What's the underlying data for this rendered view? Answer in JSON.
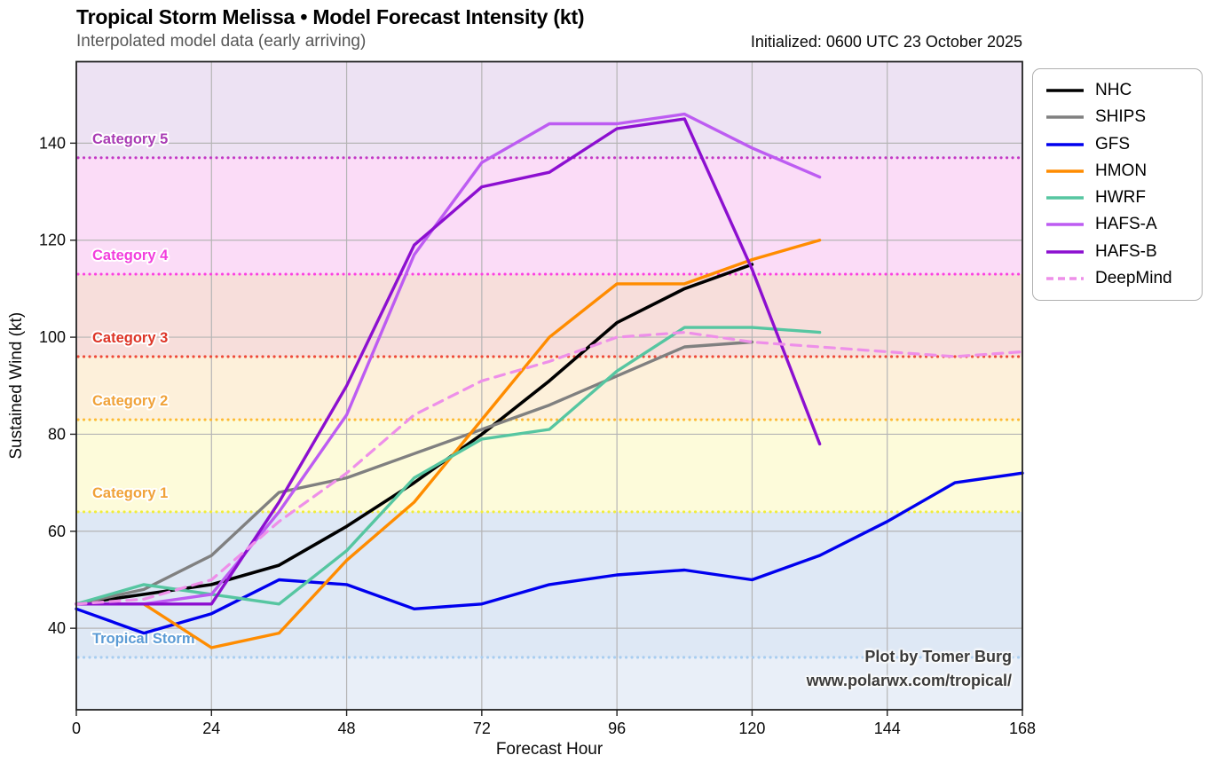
{
  "header": {
    "title": "Tropical Storm Melissa • Model Forecast Intensity (kt)",
    "subtitle": "Interpolated model data (early arriving)",
    "initialized": "Initialized: 0600 UTC 23 October 2025"
  },
  "watermark": {
    "line1": "Plot by Tomer Burg",
    "line2": "www.polarwx.com/tropical/"
  },
  "chart_data": {
    "type": "line",
    "title": "Tropical Storm Melissa • Model Forecast Intensity (kt)",
    "subtitle": "Interpolated model data (early arriving)",
    "xlabel": "Forecast Hour",
    "ylabel": "Sustained Wind (kt)",
    "xlim": [
      0,
      168
    ],
    "ylim": [
      23.2,
      156.8
    ],
    "xticks": [
      0,
      24,
      48,
      72,
      96,
      120,
      144,
      168
    ],
    "yticks": [
      40,
      60,
      80,
      100,
      120,
      140
    ],
    "grid": true,
    "legend_position": "outside-top-right",
    "bands": [
      {
        "label": "",
        "min": 23.2,
        "max": 34,
        "fill": "#e9eff8",
        "line_color": "",
        "label_color": ""
      },
      {
        "label": "Tropical Storm",
        "min": 34,
        "max": 64,
        "fill": "#dee8f5",
        "line_color": "#a8cdf0",
        "label_color": "#5b9bd5"
      },
      {
        "label": "Category 1",
        "min": 64,
        "max": 83,
        "fill": "#fdfbda",
        "line_color": "#f0ec3e",
        "label_color": "#f0a239"
      },
      {
        "label": "Category 2",
        "min": 83,
        "max": 96,
        "fill": "#fdf0da",
        "line_color": "#fdba34",
        "label_color": "#f0a239"
      },
      {
        "label": "Category 3",
        "min": 96,
        "max": 113,
        "fill": "#f7dedb",
        "line_color": "#ee4a39",
        "label_color": "#dd3527"
      },
      {
        "label": "Category 4",
        "min": 113,
        "max": 137,
        "fill": "#fbdcf7",
        "line_color": "#fb3fe1",
        "label_color": "#f23fdd"
      },
      {
        "label": "Category 5",
        "min": 137,
        "max": 156.8,
        "fill": "#ede2f3",
        "line_color": "#c23ac5",
        "label_color": "#a93cb4"
      }
    ],
    "series": [
      {
        "name": "NHC",
        "color": "#000000",
        "dash": "",
        "width": 3.6,
        "points": [
          [
            0,
            45
          ],
          [
            12,
            47
          ],
          [
            24,
            49
          ],
          [
            36,
            53
          ],
          [
            48,
            61
          ],
          [
            60,
            70
          ],
          [
            72,
            80
          ],
          [
            84,
            91
          ],
          [
            96,
            103
          ],
          [
            108,
            110
          ],
          [
            120,
            115
          ]
        ]
      },
      {
        "name": "SHIPS",
        "color": "#808080",
        "dash": "",
        "width": 3.4,
        "points": [
          [
            0,
            45
          ],
          [
            12,
            48
          ],
          [
            24,
            55
          ],
          [
            36,
            68
          ],
          [
            48,
            71
          ],
          [
            60,
            76
          ],
          [
            72,
            81
          ],
          [
            84,
            86
          ],
          [
            96,
            92
          ],
          [
            108,
            98
          ],
          [
            120,
            99
          ]
        ]
      },
      {
        "name": "GFS",
        "color": "#0000ee",
        "dash": "",
        "width": 3.4,
        "points": [
          [
            0,
            44
          ],
          [
            12,
            39
          ],
          [
            24,
            43
          ],
          [
            36,
            50
          ],
          [
            48,
            49
          ],
          [
            60,
            44
          ],
          [
            72,
            45
          ],
          [
            84,
            49
          ],
          [
            96,
            51
          ],
          [
            108,
            52
          ],
          [
            120,
            50
          ],
          [
            132,
            55
          ],
          [
            144,
            62
          ],
          [
            156,
            70
          ],
          [
            168,
            72
          ]
        ]
      },
      {
        "name": "HMON",
        "color": "#ff8c00",
        "dash": "",
        "width": 3.4,
        "points": [
          [
            0,
            45
          ],
          [
            12,
            45
          ],
          [
            24,
            36
          ],
          [
            36,
            39
          ],
          [
            48,
            54
          ],
          [
            60,
            66
          ],
          [
            72,
            83
          ],
          [
            84,
            100
          ],
          [
            96,
            111
          ],
          [
            108,
            111
          ],
          [
            120,
            116
          ],
          [
            132,
            120
          ]
        ]
      },
      {
        "name": "HWRF",
        "color": "#56c6a1",
        "dash": "",
        "width": 3.4,
        "points": [
          [
            0,
            45
          ],
          [
            12,
            49
          ],
          [
            24,
            47
          ],
          [
            36,
            45
          ],
          [
            48,
            56
          ],
          [
            60,
            71
          ],
          [
            72,
            79
          ],
          [
            84,
            81
          ],
          [
            96,
            93
          ],
          [
            108,
            102
          ],
          [
            120,
            102
          ],
          [
            132,
            101
          ]
        ]
      },
      {
        "name": "HAFS-A",
        "color": "#bd5cf2",
        "dash": "",
        "width": 3.4,
        "points": [
          [
            0,
            45
          ],
          [
            12,
            45
          ],
          [
            24,
            47
          ],
          [
            36,
            64
          ],
          [
            48,
            84
          ],
          [
            60,
            117
          ],
          [
            72,
            136
          ],
          [
            84,
            144
          ],
          [
            96,
            144
          ],
          [
            108,
            146
          ],
          [
            120,
            139
          ],
          [
            132,
            133
          ]
        ]
      },
      {
        "name": "HAFS-B",
        "color": "#8c0fd0",
        "dash": "",
        "width": 3.4,
        "points": [
          [
            0,
            45
          ],
          [
            12,
            45
          ],
          [
            24,
            45
          ],
          [
            36,
            66
          ],
          [
            48,
            90
          ],
          [
            60,
            119
          ],
          [
            72,
            131
          ],
          [
            84,
            134
          ],
          [
            96,
            143
          ],
          [
            108,
            145
          ],
          [
            120,
            114
          ],
          [
            132,
            78
          ]
        ]
      },
      {
        "name": "DeepMind",
        "color": "#ee8fe9",
        "dash": "11 8",
        "width": 3.2,
        "points": [
          [
            0,
            45
          ],
          [
            12,
            46
          ],
          [
            24,
            50
          ],
          [
            36,
            62
          ],
          [
            48,
            72
          ],
          [
            60,
            84
          ],
          [
            72,
            91
          ],
          [
            84,
            95
          ],
          [
            96,
            100
          ],
          [
            108,
            101
          ],
          [
            120,
            99
          ],
          [
            132,
            98
          ],
          [
            144,
            97
          ],
          [
            156,
            96
          ],
          [
            168,
            97
          ]
        ]
      }
    ],
    "watermark": [
      "Plot by Tomer Burg",
      "www.polarwx.com/tropical/"
    ]
  }
}
